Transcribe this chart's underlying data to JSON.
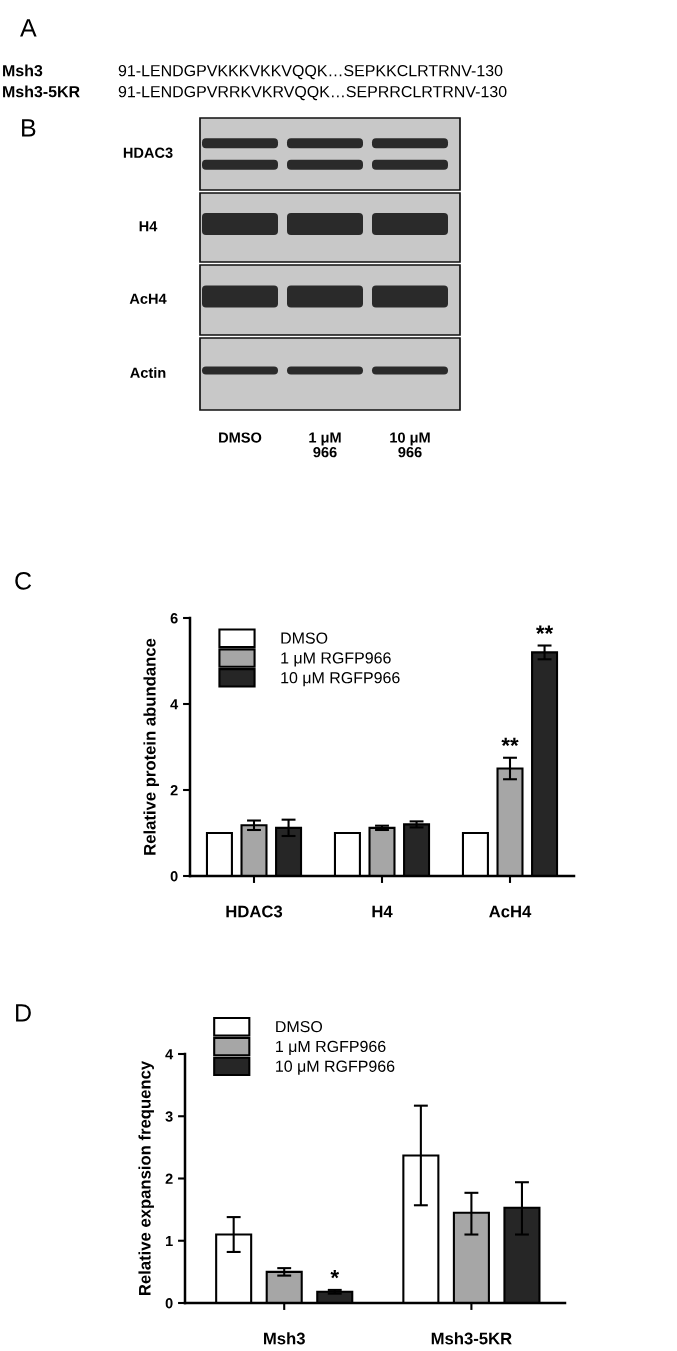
{
  "chart_data": [
    {
      "type": "other",
      "title": "A",
      "y_categories": [
        "Msh3",
        "Msh3-5KR"
      ],
      "annotations": [
        "91-LENDGPVKKKVKKVQQK…SEPKKCLRTRNV-130",
        "91-LENDGPVRRKVKRVQQK…SEPRRCLRTRNV-130"
      ]
    },
    {
      "type": "other",
      "title": "B",
      "y_categories": [
        "HDAC3",
        "H4",
        "AcH4",
        "Actin"
      ],
      "categories": [
        "DMSO",
        "1 μM\n966",
        "10 μM\n966"
      ]
    },
    {
      "type": "bar",
      "title": "C",
      "ylabel": "Relative protein abundance",
      "categories": [
        "HDAC3",
        "H4",
        "AcH4"
      ],
      "series": [
        {
          "name": "DMSO",
          "color": "#ffffff",
          "values": [
            1.0,
            1.0,
            1.0
          ],
          "errors": [
            null,
            null,
            null
          ]
        },
        {
          "name": "1 μM RGFP966",
          "color": "#a6a6a6",
          "values": [
            1.18,
            1.12,
            2.5
          ],
          "errors": [
            0.11,
            0.05,
            0.25
          ],
          "value_labels": [
            null,
            null,
            "**"
          ]
        },
        {
          "name": "10 μM RGFP966",
          "color": "#262626",
          "values": [
            1.12,
            1.2,
            5.2
          ],
          "errors": [
            0.19,
            0.07,
            0.16
          ],
          "value_labels": [
            null,
            null,
            "**"
          ]
        }
      ],
      "ylim": [
        0,
        6
      ],
      "yticks": [
        0,
        2,
        4,
        6
      ],
      "legend": "top left",
      "grid": false
    },
    {
      "type": "bar",
      "title": "D",
      "ylabel": "Relative expansion frequency",
      "categories": [
        "Msh3",
        "Msh3-5KR"
      ],
      "series": [
        {
          "name": "DMSO",
          "color": "#ffffff",
          "values": [
            1.1,
            2.37
          ],
          "errors": [
            0.28,
            0.8
          ]
        },
        {
          "name": "1 μM RGFP966",
          "color": "#a6a6a6",
          "values": [
            0.5,
            1.45
          ],
          "errors": [
            0.06,
            [
              1.1,
              1.77
            ]
          ]
        },
        {
          "name": "10 μM RGFP966",
          "color": "#262626",
          "values": [
            0.18,
            1.53
          ],
          "errors": [
            0.03,
            [
              1.1,
              1.94
            ]
          ],
          "value_labels": [
            "*",
            null
          ]
        }
      ],
      "ylim": [
        0,
        4
      ],
      "yticks": [
        0,
        1,
        2,
        3,
        4
      ],
      "legend": "top left",
      "grid": false
    }
  ]
}
